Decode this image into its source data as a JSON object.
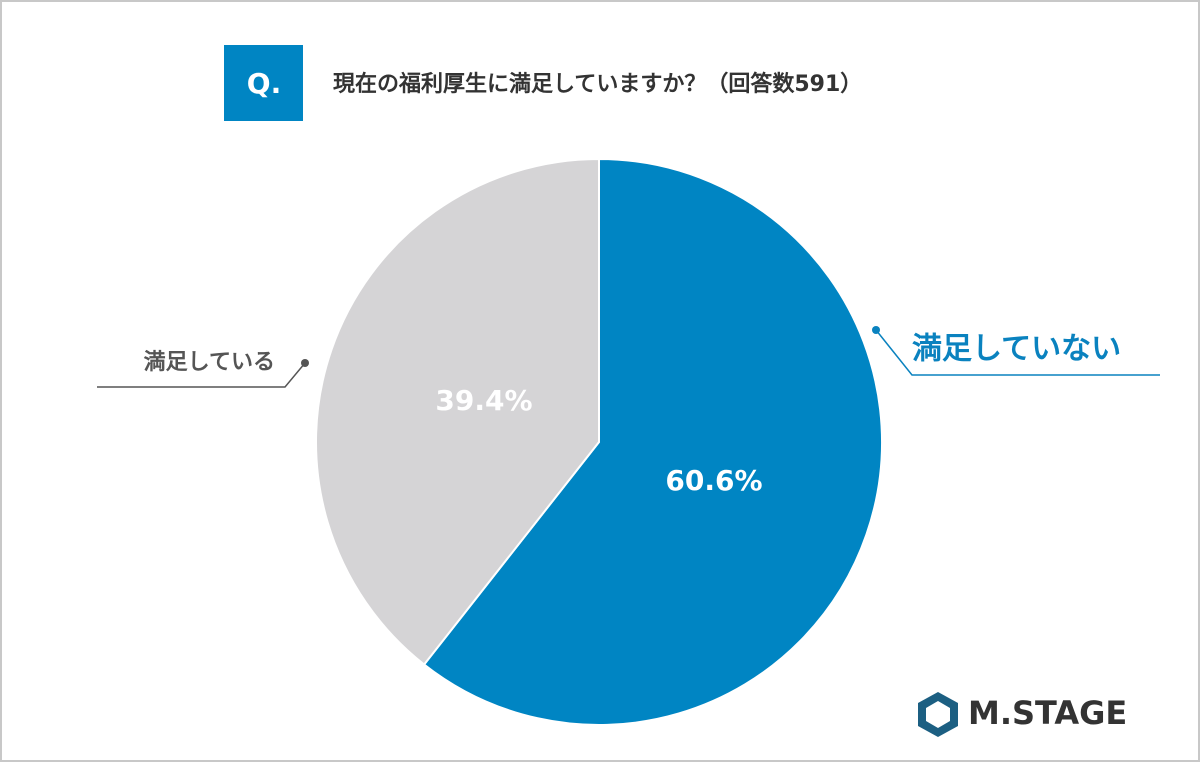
{
  "badge": "Q.",
  "logo": "M.STAGE",
  "chart_data": {
    "type": "pie",
    "title": "現在の福利厚生に満足していますか？（回答数591）",
    "categories": [
      "満足していない",
      "満足している"
    ],
    "values": [
      60.6,
      39.4
    ],
    "value_labels": [
      "60.6%",
      "39.4%"
    ],
    "colors": [
      "#0085c3",
      "#d5d4d6"
    ],
    "label_colors": [
      "#0a82bf",
      "#555555"
    ]
  }
}
